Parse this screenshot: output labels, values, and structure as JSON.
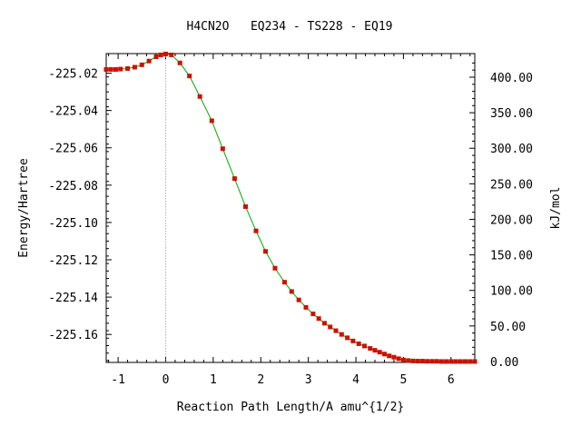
{
  "chart_data": {
    "type": "line",
    "title": "H4CN2O   EQ234 - TS228 - EQ19",
    "xlabel": "Reaction Path Length/A amu^{1/2}",
    "ylabel": "Energy/Hartree",
    "y2label": "kJ/mol",
    "xlim": [
      -1.25,
      6.5
    ],
    "ylim": [
      -225.175,
      -225.0095
    ],
    "xticks": [
      -1,
      0,
      1,
      2,
      3,
      4,
      5,
      6
    ],
    "xtick_labels": [
      "-1",
      "0",
      "1",
      "2",
      "3",
      "4",
      "5",
      "6"
    ],
    "yticks": [
      -225.16,
      -225.14,
      -225.12,
      -225.1,
      -225.08,
      -225.06,
      -225.04,
      -225.02
    ],
    "ytick_labels": [
      "-225.16",
      "-225.14",
      "-225.12",
      "-225.10",
      "-225.08",
      "-225.06",
      "-225.04",
      "-225.02"
    ],
    "y2_ref_hartree": -225.1745,
    "y2ticks_kjmol": [
      0,
      50,
      100,
      150,
      200,
      250,
      300,
      350,
      400
    ],
    "y2tick_labels": [
      "0.00",
      "50.00",
      "100.00",
      "150.00",
      "200.00",
      "250.00",
      "300.00",
      "350.00",
      "400.00"
    ],
    "ts_x": 0,
    "line_color": "#00aa00",
    "marker_color": "#cc1100",
    "series": [
      {
        "x": [
          -1.25,
          -1.15,
          -1.05,
          -0.95,
          -0.8,
          -0.65,
          -0.5,
          -0.35,
          -0.2,
          -0.1,
          0.0,
          0.12,
          0.3,
          0.5,
          0.72,
          0.97,
          1.2,
          1.45,
          1.68,
          1.9,
          2.1,
          2.3,
          2.5,
          2.65,
          2.8,
          2.95,
          3.1,
          3.22,
          3.34,
          3.46,
          3.58,
          3.7,
          3.82,
          3.94,
          4.06,
          4.18,
          4.3,
          4.4,
          4.5,
          4.6,
          4.7,
          4.8,
          4.9,
          5.0,
          5.1,
          5.2,
          5.3,
          5.4,
          5.5,
          5.6,
          5.7,
          5.8,
          5.9,
          6.0,
          6.1,
          6.2,
          6.3,
          6.4,
          6.5
        ],
        "y": [
          -225.018,
          -225.018,
          -225.018,
          -225.0178,
          -225.0175,
          -225.0168,
          -225.0155,
          -225.0135,
          -225.0112,
          -225.0102,
          -225.0097,
          -225.0102,
          -225.0145,
          -225.0215,
          -225.0325,
          -225.0455,
          -225.0605,
          -225.0765,
          -225.0915,
          -225.1045,
          -225.1155,
          -225.1245,
          -225.132,
          -225.137,
          -225.1415,
          -225.1455,
          -225.149,
          -225.1515,
          -225.154,
          -225.156,
          -225.158,
          -225.16,
          -225.1618,
          -225.1635,
          -225.165,
          -225.1662,
          -225.1675,
          -225.1685,
          -225.1695,
          -225.1705,
          -225.1715,
          -225.1722,
          -225.173,
          -225.1737,
          -225.174,
          -225.1742,
          -225.1743,
          -225.1743,
          -225.1744,
          -225.1744,
          -225.1744,
          -225.1745,
          -225.1745,
          -225.1745,
          -225.1745,
          -225.1745,
          -225.1745,
          -225.1745,
          -225.1745
        ]
      }
    ]
  }
}
